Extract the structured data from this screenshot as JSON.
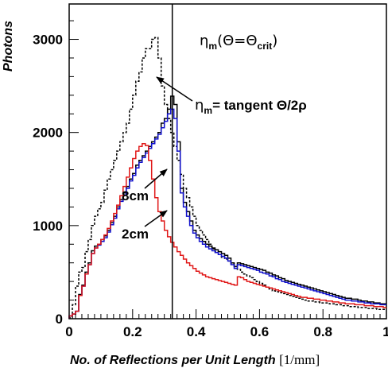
{
  "chart_data": {
    "type": "line",
    "title": "",
    "xlabel": "No. of Reflections per Unit Length",
    "xlabel_unit": "[1/mm]",
    "ylabel": "Photons",
    "xlim": [
      0,
      1
    ],
    "ylim": [
      0,
      3380
    ],
    "xticks": [
      0,
      0.2,
      0.4,
      0.6,
      0.8,
      1
    ],
    "xtick_labels": [
      "0",
      "0.2",
      "0.4",
      "0.6",
      "0.8",
      "1"
    ],
    "yticks": [
      0,
      1000,
      2000,
      3000
    ],
    "ytick_labels": [
      "0",
      "1000",
      "2000",
      "3000"
    ],
    "grid": false,
    "legend": "none",
    "vertical_line_x": 0.325,
    "series": [
      {
        "color": "#000000",
        "dashed": true,
        "step_width": 0.01,
        "values": [
          10,
          150,
          350,
          500,
          550,
          720,
          850,
          1000,
          1100,
          1180,
          1250,
          1380,
          1500,
          1600,
          1700,
          1800,
          1900,
          2000,
          2100,
          2250,
          2400,
          2550,
          2650,
          2800,
          2900,
          2900,
          3000,
          3020,
          2800,
          2500,
          2300,
          2150,
          2000,
          1850,
          1700,
          1550,
          1400,
          1300,
          1200,
          1100,
          1000,
          950,
          900,
          850,
          800,
          750,
          720,
          690,
          660,
          640,
          620,
          590,
          560,
          530,
          500,
          480,
          460,
          440,
          420,
          400,
          380,
          360,
          340,
          320,
          300,
          290,
          280,
          270,
          260,
          250,
          240,
          230,
          220,
          210,
          200,
          190,
          190,
          180,
          180,
          170,
          170,
          170,
          160,
          160,
          150,
          150,
          140,
          140,
          130,
          130,
          130,
          120,
          120,
          120,
          110,
          110,
          110,
          100,
          100,
          100
        ]
      },
      {
        "color": "#000000",
        "dashed": false,
        "step_width": 0.01,
        "values": [
          30,
          50,
          80,
          260,
          360,
          500,
          600,
          730,
          780,
          800,
          850,
          890,
          950,
          1030,
          1100,
          1200,
          1280,
          1350,
          1420,
          1500,
          1560,
          1650,
          1700,
          1750,
          1800,
          1850,
          1900,
          1950,
          2000,
          2100,
          2150,
          2250,
          2390,
          2300,
          1900,
          1400,
          1250,
          1150,
          1050,
          950,
          900,
          860,
          830,
          800,
          780,
          760,
          740,
          720,
          700,
          680,
          650,
          600,
          560,
          600,
          590,
          580,
          570,
          560,
          550,
          540,
          530,
          520,
          500,
          490,
          470,
          460,
          440,
          430,
          410,
          400,
          390,
          380,
          370,
          360,
          350,
          340,
          330,
          320,
          310,
          300,
          290,
          280,
          270,
          260,
          250,
          240,
          230,
          220,
          220,
          210,
          210,
          200,
          190,
          190,
          180,
          180,
          170,
          170,
          160,
          160
        ]
      },
      {
        "color": "#1010cc",
        "dashed": false,
        "step_width": 0.01,
        "values": [
          30,
          50,
          80,
          250,
          350,
          480,
          580,
          700,
          760,
          790,
          830,
          870,
          930,
          1010,
          1080,
          1180,
          1260,
          1330,
          1400,
          1480,
          1540,
          1620,
          1680,
          1730,
          1780,
          1830,
          1880,
          1930,
          1980,
          2050,
          2120,
          2200,
          2250,
          2150,
          1800,
          1350,
          1200,
          1100,
          1000,
          920,
          870,
          830,
          800,
          770,
          750,
          730,
          710,
          690,
          670,
          650,
          620,
          580,
          540,
          580,
          570,
          560,
          550,
          540,
          530,
          520,
          500,
          490,
          480,
          460,
          450,
          430,
          420,
          400,
          390,
          380,
          370,
          360,
          350,
          340,
          330,
          320,
          310,
          300,
          290,
          280,
          270,
          260,
          250,
          240,
          230,
          220,
          210,
          200,
          200,
          190,
          190,
          180,
          180,
          170,
          170,
          160,
          160,
          160,
          150,
          150
        ]
      },
      {
        "color": "#e01818",
        "dashed": false,
        "step_width": 0.01,
        "values": [
          30,
          50,
          80,
          250,
          350,
          480,
          580,
          700,
          760,
          800,
          850,
          900,
          970,
          1050,
          1130,
          1220,
          1320,
          1420,
          1520,
          1620,
          1720,
          1800,
          1850,
          1880,
          1860,
          1700,
          1500,
          1300,
          1150,
          1050,
          950,
          880,
          820,
          770,
          720,
          680,
          640,
          600,
          570,
          540,
          510,
          490,
          470,
          450,
          440,
          430,
          420,
          410,
          400,
          390,
          380,
          370,
          360,
          450,
          440,
          420,
          400,
          390,
          380,
          370,
          360,
          350,
          340,
          330,
          320,
          310,
          300,
          290,
          280,
          270,
          260,
          250,
          240,
          230,
          230,
          220,
          220,
          210,
          210,
          200,
          200,
          190,
          190,
          180,
          180,
          170,
          170,
          160,
          160,
          160,
          150,
          150,
          150,
          140,
          140,
          140,
          130,
          130,
          130,
          120
        ]
      }
    ],
    "annotations": {
      "eta_crit": {
        "sym": "η",
        "sub": "m",
        "text": "(Θ=Θ",
        "sub2": "crit",
        "close": ")"
      },
      "eta_tangent": {
        "sym": "η",
        "sub": "m",
        "text": "= tangent Θ/2ρ"
      },
      "label_8cm": "8cm",
      "label_2cm": "2cm"
    }
  }
}
